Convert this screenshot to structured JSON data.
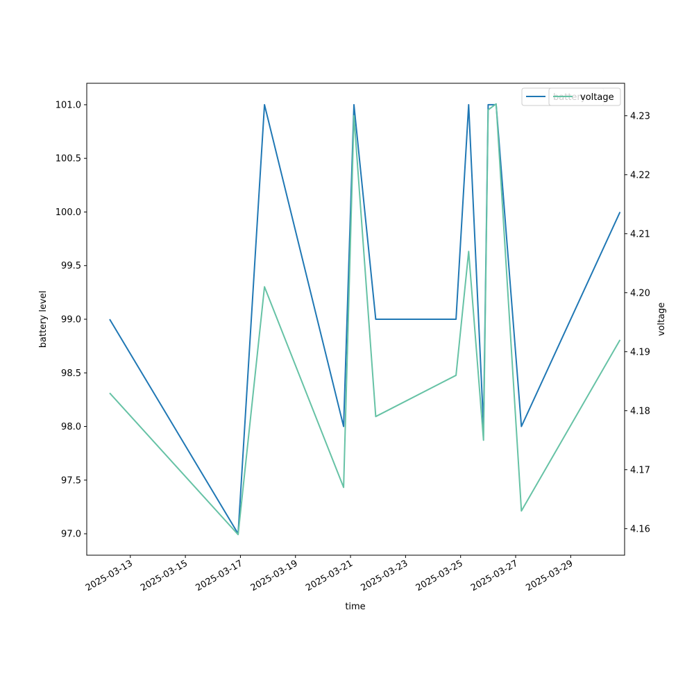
{
  "chart_data": {
    "type": "line",
    "xlabel": "time",
    "ylabel_left": "battery level",
    "ylabel_right": "voltage",
    "x_tick_labels": [
      "2025-03-13",
      "2025-03-15",
      "2025-03-17",
      "2025-03-19",
      "2025-03-21",
      "2025-03-23",
      "2025-03-25",
      "2025-03-27",
      "2025-03-29"
    ],
    "xlim": [
      "2025-03-11 10:00",
      "2025-03-30 23:00"
    ],
    "ylim_left": [
      96.8,
      101.2
    ],
    "ylim_right": [
      4.1555,
      4.2355
    ],
    "y_ticks_left": [
      97.0,
      97.5,
      98.0,
      98.5,
      99.0,
      99.5,
      100.0,
      100.5,
      101.0
    ],
    "y_ticks_right": [
      4.16,
      4.17,
      4.18,
      4.19,
      4.2,
      4.21,
      4.22,
      4.23
    ],
    "series": [
      {
        "name": "battery",
        "axis": "left",
        "color": "#1f77b4",
        "points": [
          [
            "2025-03-12 06:00",
            99.0
          ],
          [
            "2025-03-16 22:00",
            97.0
          ],
          [
            "2025-03-17 21:00",
            101.0
          ],
          [
            "2025-03-20 18:00",
            98.0
          ],
          [
            "2025-03-21 03:00",
            101.0
          ],
          [
            "2025-03-21 22:00",
            99.0
          ],
          [
            "2025-03-24 20:00",
            99.0
          ],
          [
            "2025-03-25 07:00",
            101.0
          ],
          [
            "2025-03-25 20:00",
            98.0
          ],
          [
            "2025-03-26 00:00",
            101.0
          ],
          [
            "2025-03-26 07:00",
            101.0
          ],
          [
            "2025-03-27 05:00",
            98.0
          ],
          [
            "2025-03-30 19:00",
            100.0
          ]
        ]
      },
      {
        "name": "voltage",
        "axis": "right",
        "color": "#66c2a5",
        "points": [
          [
            "2025-03-12 06:00",
            4.183
          ],
          [
            "2025-03-16 22:00",
            4.159
          ],
          [
            "2025-03-17 21:00",
            4.201
          ],
          [
            "2025-03-20 18:00",
            4.167
          ],
          [
            "2025-03-21 03:00",
            4.23
          ],
          [
            "2025-03-21 22:00",
            4.179
          ],
          [
            "2025-03-24 20:00",
            4.186
          ],
          [
            "2025-03-25 07:00",
            4.207
          ],
          [
            "2025-03-25 20:00",
            4.175
          ],
          [
            "2025-03-26 00:00",
            4.231
          ],
          [
            "2025-03-26 07:00",
            4.232
          ],
          [
            "2025-03-27 05:00",
            4.163
          ],
          [
            "2025-03-30 19:00",
            4.192
          ]
        ]
      }
    ],
    "legend_left": {
      "label": "battery",
      "placement": "top-right"
    },
    "legend_right": {
      "label": "voltage",
      "placement": "top-right"
    }
  }
}
